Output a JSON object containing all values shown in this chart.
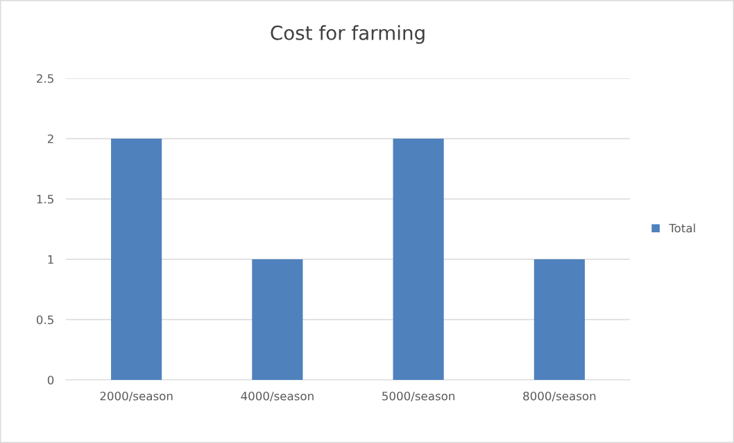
{
  "chart_data": {
    "type": "bar",
    "title": "Cost for farming",
    "categories": [
      "2000/season",
      "4000/season",
      "5000/season",
      "8000/season"
    ],
    "series": [
      {
        "name": "Total",
        "color": "#4f81bd",
        "values": [
          2,
          1,
          2,
          1
        ]
      }
    ],
    "ylim": [
      0,
      2.5
    ],
    "yticks": [
      0,
      {
        "value": 0.5,
        "label": "0.5"
      },
      1,
      {
        "value": 1.5,
        "label": "1.5"
      },
      2,
      {
        "value": 2.5,
        "label": "2.5"
      }
    ],
    "grid": "y",
    "legend": "right"
  }
}
